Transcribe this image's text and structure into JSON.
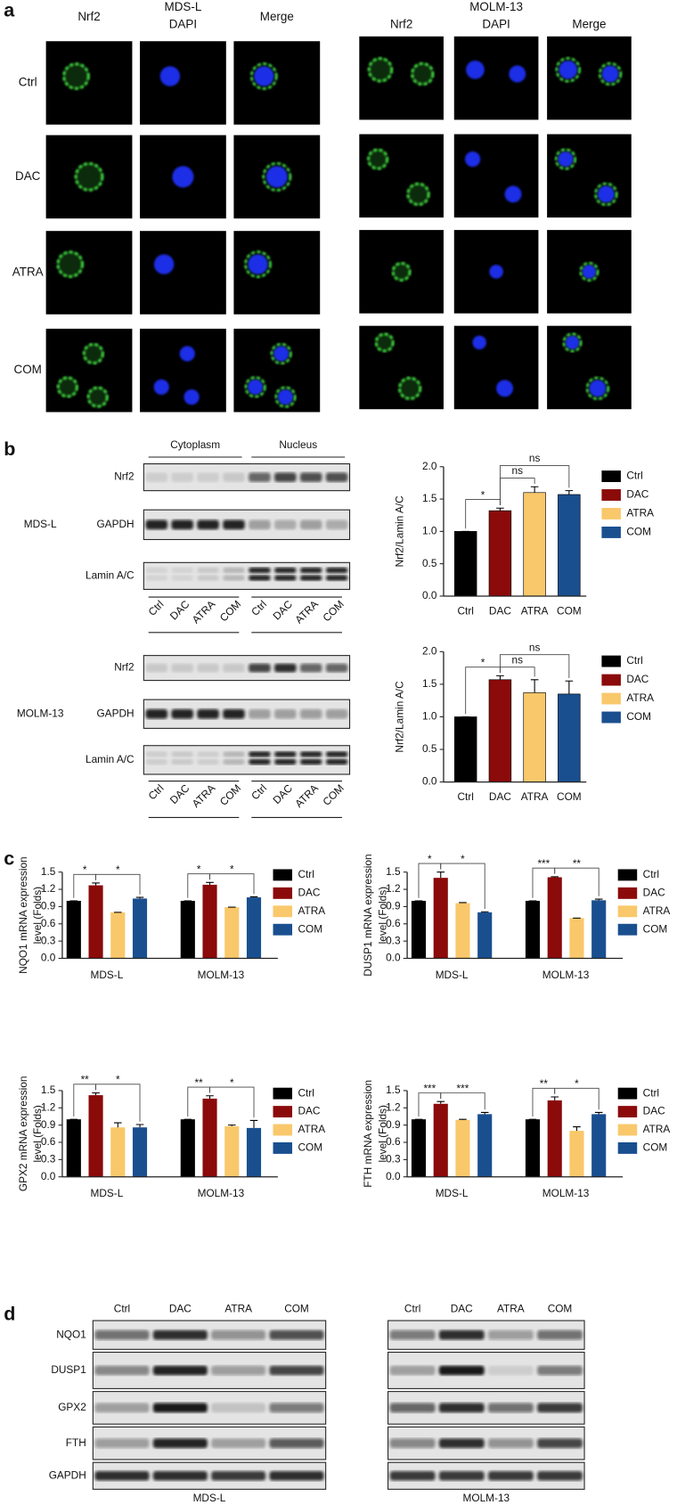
{
  "figure": {
    "panel_a": {
      "label": "a",
      "cell_lines": [
        {
          "name": "MDS-L",
          "channels": [
            "Nrf2",
            "DAPI",
            "Merge"
          ]
        },
        {
          "name": "MOLM-13",
          "channels": [
            "Nrf2",
            "DAPI",
            "Merge"
          ]
        }
      ],
      "treatments": [
        "Ctrl",
        "DAC",
        "ATRA",
        "COM"
      ]
    },
    "panel_b": {
      "label": "b",
      "fractions": [
        "Cytoplasm",
        "Nucleus"
      ],
      "proteins": [
        "Nrf2",
        "GAPDH",
        "Lamin A/C"
      ],
      "lanes": [
        "Ctrl",
        "DAC",
        "ATRA",
        "COM"
      ],
      "cell_lines": [
        "MDS-L",
        "MOLM-13"
      ]
    },
    "panel_c": {
      "label": "c"
    },
    "panel_d": {
      "label": "d",
      "proteins": [
        "NQO1",
        "DUSP1",
        "GPX2",
        "FTH",
        "GAPDH"
      ],
      "lanes": [
        "Ctrl",
        "DAC",
        "ATRA",
        "COM"
      ],
      "cell_lines": [
        "MDS-L",
        "MOLM-13"
      ]
    }
  },
  "chart_data": [
    {
      "type": "bar",
      "ylabel": "Nrf2/Lamin A/C",
      "categories": [
        "Ctrl",
        "DAC",
        "ATRA",
        "COM"
      ],
      "values": [
        1.0,
        1.32,
        1.6,
        1.57
      ],
      "errors": [
        0,
        0.04,
        0.09,
        0.06
      ],
      "colors": [
        "#000000",
        "#8b0a0a",
        "#f9c86b",
        "#1a4f8f"
      ],
      "ylim": [
        0,
        2
      ],
      "yticks": [
        {
          "value": 0,
          "label": "0.0"
        },
        0.5,
        {
          "value": 1,
          "label": "1.0"
        },
        1.5,
        {
          "value": 2,
          "label": "2.0"
        }
      ],
      "legend": "right",
      "annotations": [
        {
          "label": "*",
          "between": [
            "Ctrl",
            "DAC"
          ]
        },
        {
          "label": "ns",
          "between": [
            "DAC",
            "ATRA"
          ]
        },
        {
          "label": "ns",
          "between": [
            "DAC",
            "COM"
          ]
        }
      ]
    },
    {
      "type": "bar",
      "ylabel": "Nrf2/Lamin A/C",
      "categories": [
        "Ctrl",
        "DAC",
        "ATRA",
        "COM"
      ],
      "values": [
        1.0,
        1.57,
        1.37,
        1.35
      ],
      "errors": [
        0,
        0.06,
        0.2,
        0.2
      ],
      "colors": [
        "#000000",
        "#8b0a0a",
        "#f9c86b",
        "#1a4f8f"
      ],
      "ylim": [
        0,
        2
      ],
      "yticks": [
        {
          "value": 0,
          "label": "0.0"
        },
        0.5,
        {
          "value": 1,
          "label": "1.0"
        },
        1.5,
        {
          "value": 2,
          "label": "2.0"
        }
      ],
      "legend": "right",
      "annotations": [
        {
          "label": "*",
          "between": [
            "Ctrl",
            "DAC"
          ]
        },
        {
          "label": "ns",
          "between": [
            "DAC",
            "ATRA"
          ]
        },
        {
          "label": "ns",
          "between": [
            "DAC",
            "COM"
          ]
        }
      ]
    },
    {
      "type": "grouped_bar",
      "ylabel": [
        "NQO1 mRNA expression",
        "level (Folds)"
      ],
      "categories": [
        "MDS-L",
        "MOLM-13"
      ],
      "series": [
        {
          "name": "Ctrl",
          "color": "#000000",
          "values": [
            1.0,
            1.0
          ],
          "errors": [
            0,
            0
          ]
        },
        {
          "name": "DAC",
          "color": "#8b0a0a",
          "values": [
            1.27,
            1.28
          ],
          "errors": [
            0.04,
            0.04
          ]
        },
        {
          "name": "ATRA",
          "color": "#f9c86b",
          "values": [
            0.8,
            0.89
          ],
          "errors": [
            0,
            0
          ]
        },
        {
          "name": "COM",
          "color": "#1a4f8f",
          "values": [
            1.04,
            1.06
          ],
          "errors": [
            0.02,
            0.01
          ]
        }
      ],
      "ylim": [
        0,
        1.5
      ],
      "yticks": [
        {
          "value": 0,
          "label": "0.0"
        },
        0.3,
        0.6,
        0.9,
        1.2,
        1.5
      ],
      "legend": "right",
      "annotations": [
        [
          {
            "label": "*",
            "between": [
              "Ctrl",
              "DAC"
            ]
          },
          {
            "label": "*",
            "between": [
              "DAC",
              "COM"
            ]
          }
        ],
        [
          {
            "label": "*",
            "between": [
              "Ctrl",
              "DAC"
            ]
          },
          {
            "label": "*",
            "between": [
              "DAC",
              "COM"
            ]
          }
        ]
      ]
    },
    {
      "type": "grouped_bar",
      "ylabel": [
        "DUSP1 mRNA expression",
        "level (Folds)"
      ],
      "categories": [
        "MDS-L",
        "MOLM-13"
      ],
      "series": [
        {
          "name": "Ctrl",
          "color": "#000000",
          "values": [
            1.0,
            1.0
          ],
          "errors": [
            0,
            0
          ]
        },
        {
          "name": "DAC",
          "color": "#8b0a0a",
          "values": [
            1.4,
            1.41
          ],
          "errors": [
            0.1,
            0.01
          ]
        },
        {
          "name": "ATRA",
          "color": "#f9c86b",
          "values": [
            0.96,
            0.7
          ],
          "errors": [
            0.01,
            0
          ]
        },
        {
          "name": "COM",
          "color": "#1a4f8f",
          "values": [
            0.8,
            1.01
          ],
          "errors": [
            0.01,
            0.02
          ]
        }
      ],
      "ylim": [
        0,
        1.5
      ],
      "yticks": [
        {
          "value": 0,
          "label": "0.0"
        },
        0.3,
        0.6,
        0.9,
        1.2,
        1.5
      ],
      "legend": "right",
      "annotations": [
        [
          {
            "label": "*",
            "between": [
              "Ctrl",
              "DAC"
            ]
          },
          {
            "label": "*",
            "between": [
              "DAC",
              "COM"
            ]
          }
        ],
        [
          {
            "label": "***",
            "between": [
              "Ctrl",
              "DAC"
            ]
          },
          {
            "label": "**",
            "between": [
              "DAC",
              "COM"
            ]
          }
        ]
      ]
    },
    {
      "type": "grouped_bar",
      "ylabel": [
        "GPX2 mRNA expression",
        "level (Folds)"
      ],
      "categories": [
        "MDS-L",
        "MOLM-13"
      ],
      "series": [
        {
          "name": "Ctrl",
          "color": "#000000",
          "values": [
            1.0,
            1.0
          ],
          "errors": [
            0,
            0
          ]
        },
        {
          "name": "DAC",
          "color": "#8b0a0a",
          "values": [
            1.42,
            1.36
          ],
          "errors": [
            0.04,
            0.05
          ]
        },
        {
          "name": "ATRA",
          "color": "#f9c86b",
          "values": [
            0.86,
            0.88
          ],
          "errors": [
            0.08,
            0.02
          ]
        },
        {
          "name": "COM",
          "color": "#1a4f8f",
          "values": [
            0.86,
            0.85
          ],
          "errors": [
            0.05,
            0.13
          ]
        }
      ],
      "ylim": [
        0,
        1.5
      ],
      "yticks": [
        {
          "value": 0,
          "label": "0.0"
        },
        0.3,
        0.6,
        0.9,
        1.2,
        1.5
      ],
      "legend": "right",
      "annotations": [
        [
          {
            "label": "**",
            "between": [
              "Ctrl",
              "DAC"
            ]
          },
          {
            "label": "*",
            "between": [
              "DAC",
              "COM"
            ]
          }
        ],
        [
          {
            "label": "**",
            "between": [
              "Ctrl",
              "DAC"
            ]
          },
          {
            "label": "*",
            "between": [
              "DAC",
              "COM"
            ]
          }
        ]
      ]
    },
    {
      "type": "grouped_bar",
      "ylabel": [
        "FTH mRNA expression",
        "level (Folds)"
      ],
      "categories": [
        "MDS-L",
        "MOLM-13"
      ],
      "series": [
        {
          "name": "Ctrl",
          "color": "#000000",
          "values": [
            1.0,
            1.0
          ],
          "errors": [
            0,
            0
          ]
        },
        {
          "name": "DAC",
          "color": "#8b0a0a",
          "values": [
            1.27,
            1.33
          ],
          "errors": [
            0.04,
            0.06
          ]
        },
        {
          "name": "ATRA",
          "color": "#f9c86b",
          "values": [
            0.99,
            0.8
          ],
          "errors": [
            0.01,
            0.07
          ]
        },
        {
          "name": "COM",
          "color": "#1a4f8f",
          "values": [
            1.09,
            1.09
          ],
          "errors": [
            0.03,
            0.03
          ]
        }
      ],
      "ylim": [
        0,
        1.5
      ],
      "yticks": [
        {
          "value": 0,
          "label": "0.0"
        },
        0.3,
        0.6,
        0.9,
        1.2,
        1.5
      ],
      "legend": "right",
      "annotations": [
        [
          {
            "label": "***",
            "between": [
              "Ctrl",
              "DAC"
            ]
          },
          {
            "label": "***",
            "between": [
              "DAC",
              "COM"
            ]
          }
        ],
        [
          {
            "label": "**",
            "between": [
              "Ctrl",
              "DAC"
            ]
          },
          {
            "label": "*",
            "between": [
              "DAC",
              "COM"
            ]
          }
        ]
      ]
    }
  ]
}
